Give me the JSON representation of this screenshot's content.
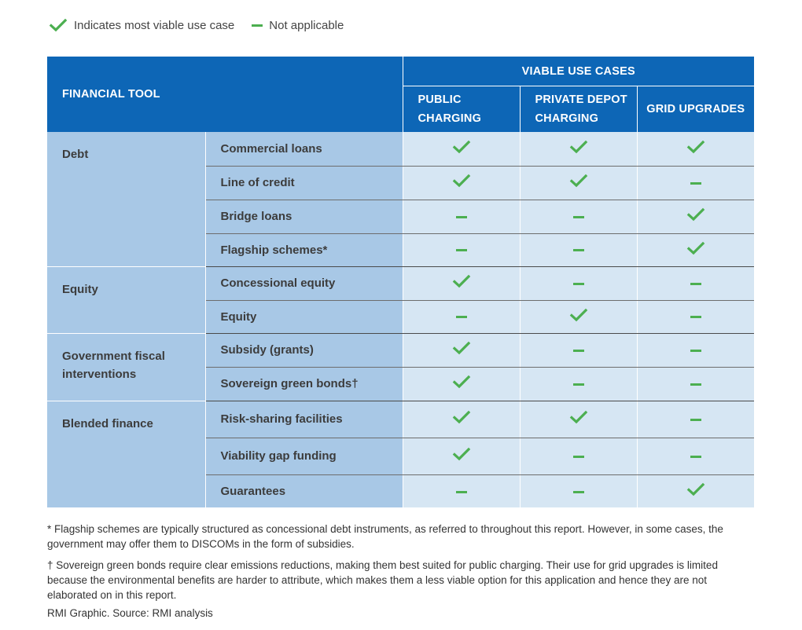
{
  "legend": {
    "check_label": "Indicates most viable use case",
    "dash_label": "Not applicable",
    "accent_color": "#4caf50"
  },
  "header": {
    "financial_tool": "FINANCIAL TOOL",
    "viable_use_cases": "VIABLE USE CASES",
    "columns": [
      {
        "line1": "PUBLIC",
        "line2": "CHARGING"
      },
      {
        "line1": "PRIVATE DEPOT",
        "line2": "CHARGING"
      },
      {
        "line1": "GRID UPGRADES",
        "line2": ""
      }
    ],
    "header_color": "#0d66b6"
  },
  "groups": [
    {
      "category": "Debt",
      "rows": [
        {
          "tool": "Commercial loans",
          "values": [
            "check",
            "check",
            "check"
          ]
        },
        {
          "tool": "Line of credit",
          "values": [
            "check",
            "check",
            "dash"
          ]
        },
        {
          "tool": "Bridge loans",
          "values": [
            "dash",
            "dash",
            "check"
          ]
        },
        {
          "tool": "Flagship schemes*",
          "values": [
            "dash",
            "dash",
            "check"
          ]
        }
      ]
    },
    {
      "category": "Equity",
      "rows": [
        {
          "tool": "Concessional equity",
          "values": [
            "check",
            "dash",
            "dash"
          ]
        },
        {
          "tool": "Equity",
          "values": [
            "dash",
            "check",
            "dash"
          ]
        }
      ]
    },
    {
      "category": "Government fiscal interventions",
      "rows": [
        {
          "tool": "Subsidy (grants)",
          "values": [
            "check",
            "dash",
            "dash"
          ]
        },
        {
          "tool": "Sovereign green bonds†",
          "values": [
            "check",
            "dash",
            "dash"
          ]
        }
      ]
    },
    {
      "category": "Blended finance",
      "rows": [
        {
          "tool": "Risk-sharing facilities",
          "values": [
            "check",
            "check",
            "dash"
          ]
        },
        {
          "tool": "Viability gap funding",
          "values": [
            "check",
            "dash",
            "dash"
          ]
        },
        {
          "tool": "Guarantees",
          "values": [
            "dash",
            "dash",
            "check"
          ]
        }
      ]
    }
  ],
  "footnotes": [
    "* Flagship schemes are typically structured as concessional debt instruments, as referred to throughout this report. However, in some cases, the government may offer them to DISCOMs in the form of subsidies.",
    "† Sovereign green bonds require clear emissions reductions, making them best suited for public charging. Their use for grid upgrades is limited because the environmental benefits are harder to attribute, which makes them a less viable option for this application and hence they are not elaborated on in this report."
  ],
  "source": "RMI Graphic. Source: RMI analysis"
}
